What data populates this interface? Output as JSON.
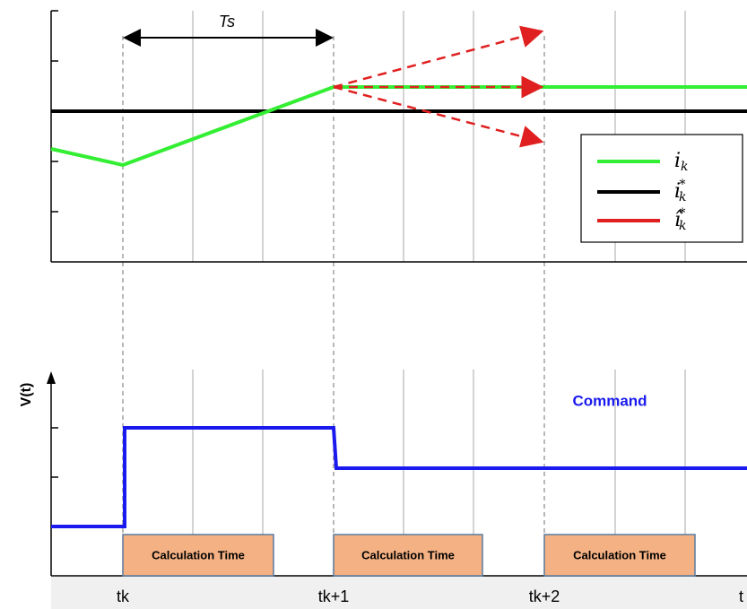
{
  "top": {
    "period_label": "Ts",
    "legend": [
      "i",
      "i",
      "î"
    ],
    "legend_sub": "k",
    "legend_sup": "*"
  },
  "bottom": {
    "y_label": "V(t)",
    "command_label": "Command",
    "boxes": [
      "Calculation Time",
      "Calculation Time",
      "Calculation Time"
    ],
    "x_labels": [
      "tk",
      "tk+1",
      "tk+2",
      "t"
    ]
  }
}
